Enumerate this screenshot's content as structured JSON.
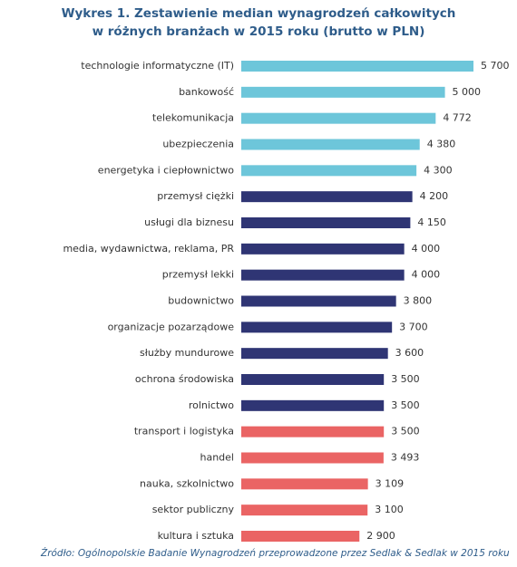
{
  "chart_data": {
    "type": "bar",
    "orientation": "horizontal",
    "title": [
      "Wykres 1. Zestawienie median wynagrodzeń całkowitych",
      "w różnych branżach w 2015 roku (brutto w PLN)"
    ],
    "categories": [
      "technologie informatyczne (IT)",
      "bankowość",
      "telekomunikacja",
      "ubezpieczenia",
      "energetyka i ciepłownictwo",
      "przemysł ciężki",
      "usługi dla biznesu",
      "media, wydawnictwa, reklama, PR",
      "przemysł lekki",
      "budownictwo",
      "organizacje pozarządowe",
      "służby mundurowe",
      "ochrona środowiska",
      "rolnictwo",
      "transport i logistyka",
      "handel",
      "nauka, szkolnictwo",
      "sektor publiczny",
      "kultura i sztuka"
    ],
    "values": [
      5700,
      5000,
      4772,
      4380,
      4300,
      4200,
      4150,
      4000,
      4000,
      3800,
      3700,
      3600,
      3500,
      3500,
      3500,
      3493,
      3109,
      3100,
      2900
    ],
    "value_labels": [
      "5 700",
      "5 000",
      "4 772",
      "4 380",
      "4 300",
      "4 200",
      "4 150",
      "4 000",
      "4 000",
      "3 800",
      "3 700",
      "3 600",
      "3 500",
      "3 500",
      "3 500",
      "3 493",
      "3 109",
      "3 100",
      "2 900"
    ],
    "colors": [
      "#6DC6DA",
      "#6DC6DA",
      "#6DC6DA",
      "#6DC6DA",
      "#6DC6DA",
      "#2F3574",
      "#2F3574",
      "#2F3574",
      "#2F3574",
      "#2F3574",
      "#2F3574",
      "#2F3574",
      "#2F3574",
      "#2F3574",
      "#EA6464",
      "#EA6464",
      "#EA6464",
      "#EA6464",
      "#EA6464"
    ],
    "source": "Źródło: Ogólnopolskie Badanie Wynagrodzeń przeprowadzone przez Sedlak & Sedlak w 2015 roku"
  }
}
